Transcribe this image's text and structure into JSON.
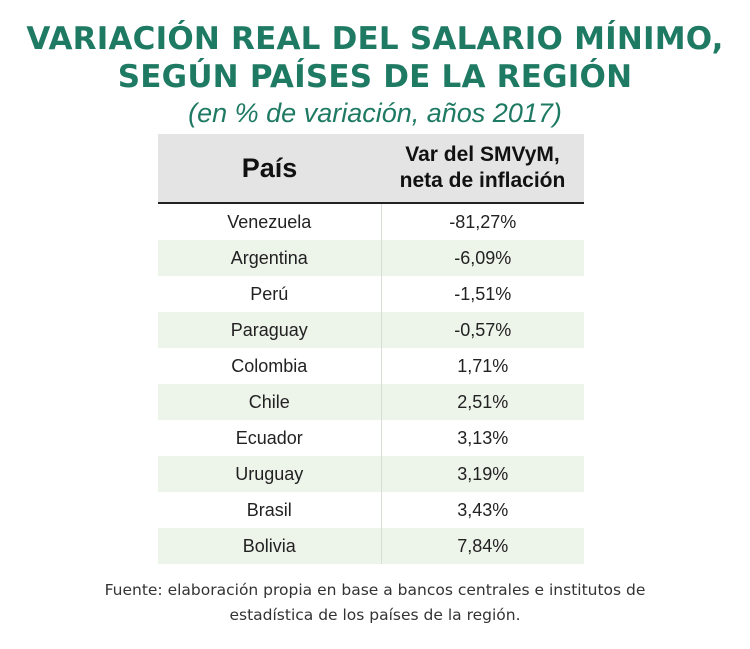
{
  "chart_data": {
    "type": "table",
    "title": [
      "VARIACIÓN REAL DEL SALARIO MÍNIMO,",
      "SEGÚN PAÍSES DE LA REGIÓN"
    ],
    "subtitle": "(en % de variación, años 2017)",
    "columns": {
      "country": "País",
      "value": [
        "Var del SMVyM,",
        "neta de inflación"
      ]
    },
    "rows": [
      {
        "country": "Venezuela",
        "value_text": "-81,27%",
        "value": -81.27
      },
      {
        "country": "Argentina",
        "value_text": "-6,09%",
        "value": -6.09
      },
      {
        "country": "Perú",
        "value_text": "-1,51%",
        "value": -1.51
      },
      {
        "country": "Paraguay",
        "value_text": "-0,57%",
        "value": -0.57
      },
      {
        "country": "Colombia",
        "value_text": "1,71%",
        "value": 1.71
      },
      {
        "country": "Chile",
        "value_text": "2,51%",
        "value": 2.51
      },
      {
        "country": "Ecuador",
        "value_text": "3,13%",
        "value": 3.13
      },
      {
        "country": "Uruguay",
        "value_text": "3,19%",
        "value": 3.19
      },
      {
        "country": "Brasil",
        "value_text": "3,43%",
        "value": 3.43
      },
      {
        "country": "Bolivia",
        "value_text": "7,84%",
        "value": 7.84
      }
    ],
    "source": [
      "Fuente: elaboración propia en base a bancos centrales e institutos de",
      "estadística de los países de la región."
    ]
  },
  "colors": {
    "title": "#1f7a63",
    "header_bg": "#e4e4e4",
    "row_alt_bg": "#edf4ea"
  }
}
